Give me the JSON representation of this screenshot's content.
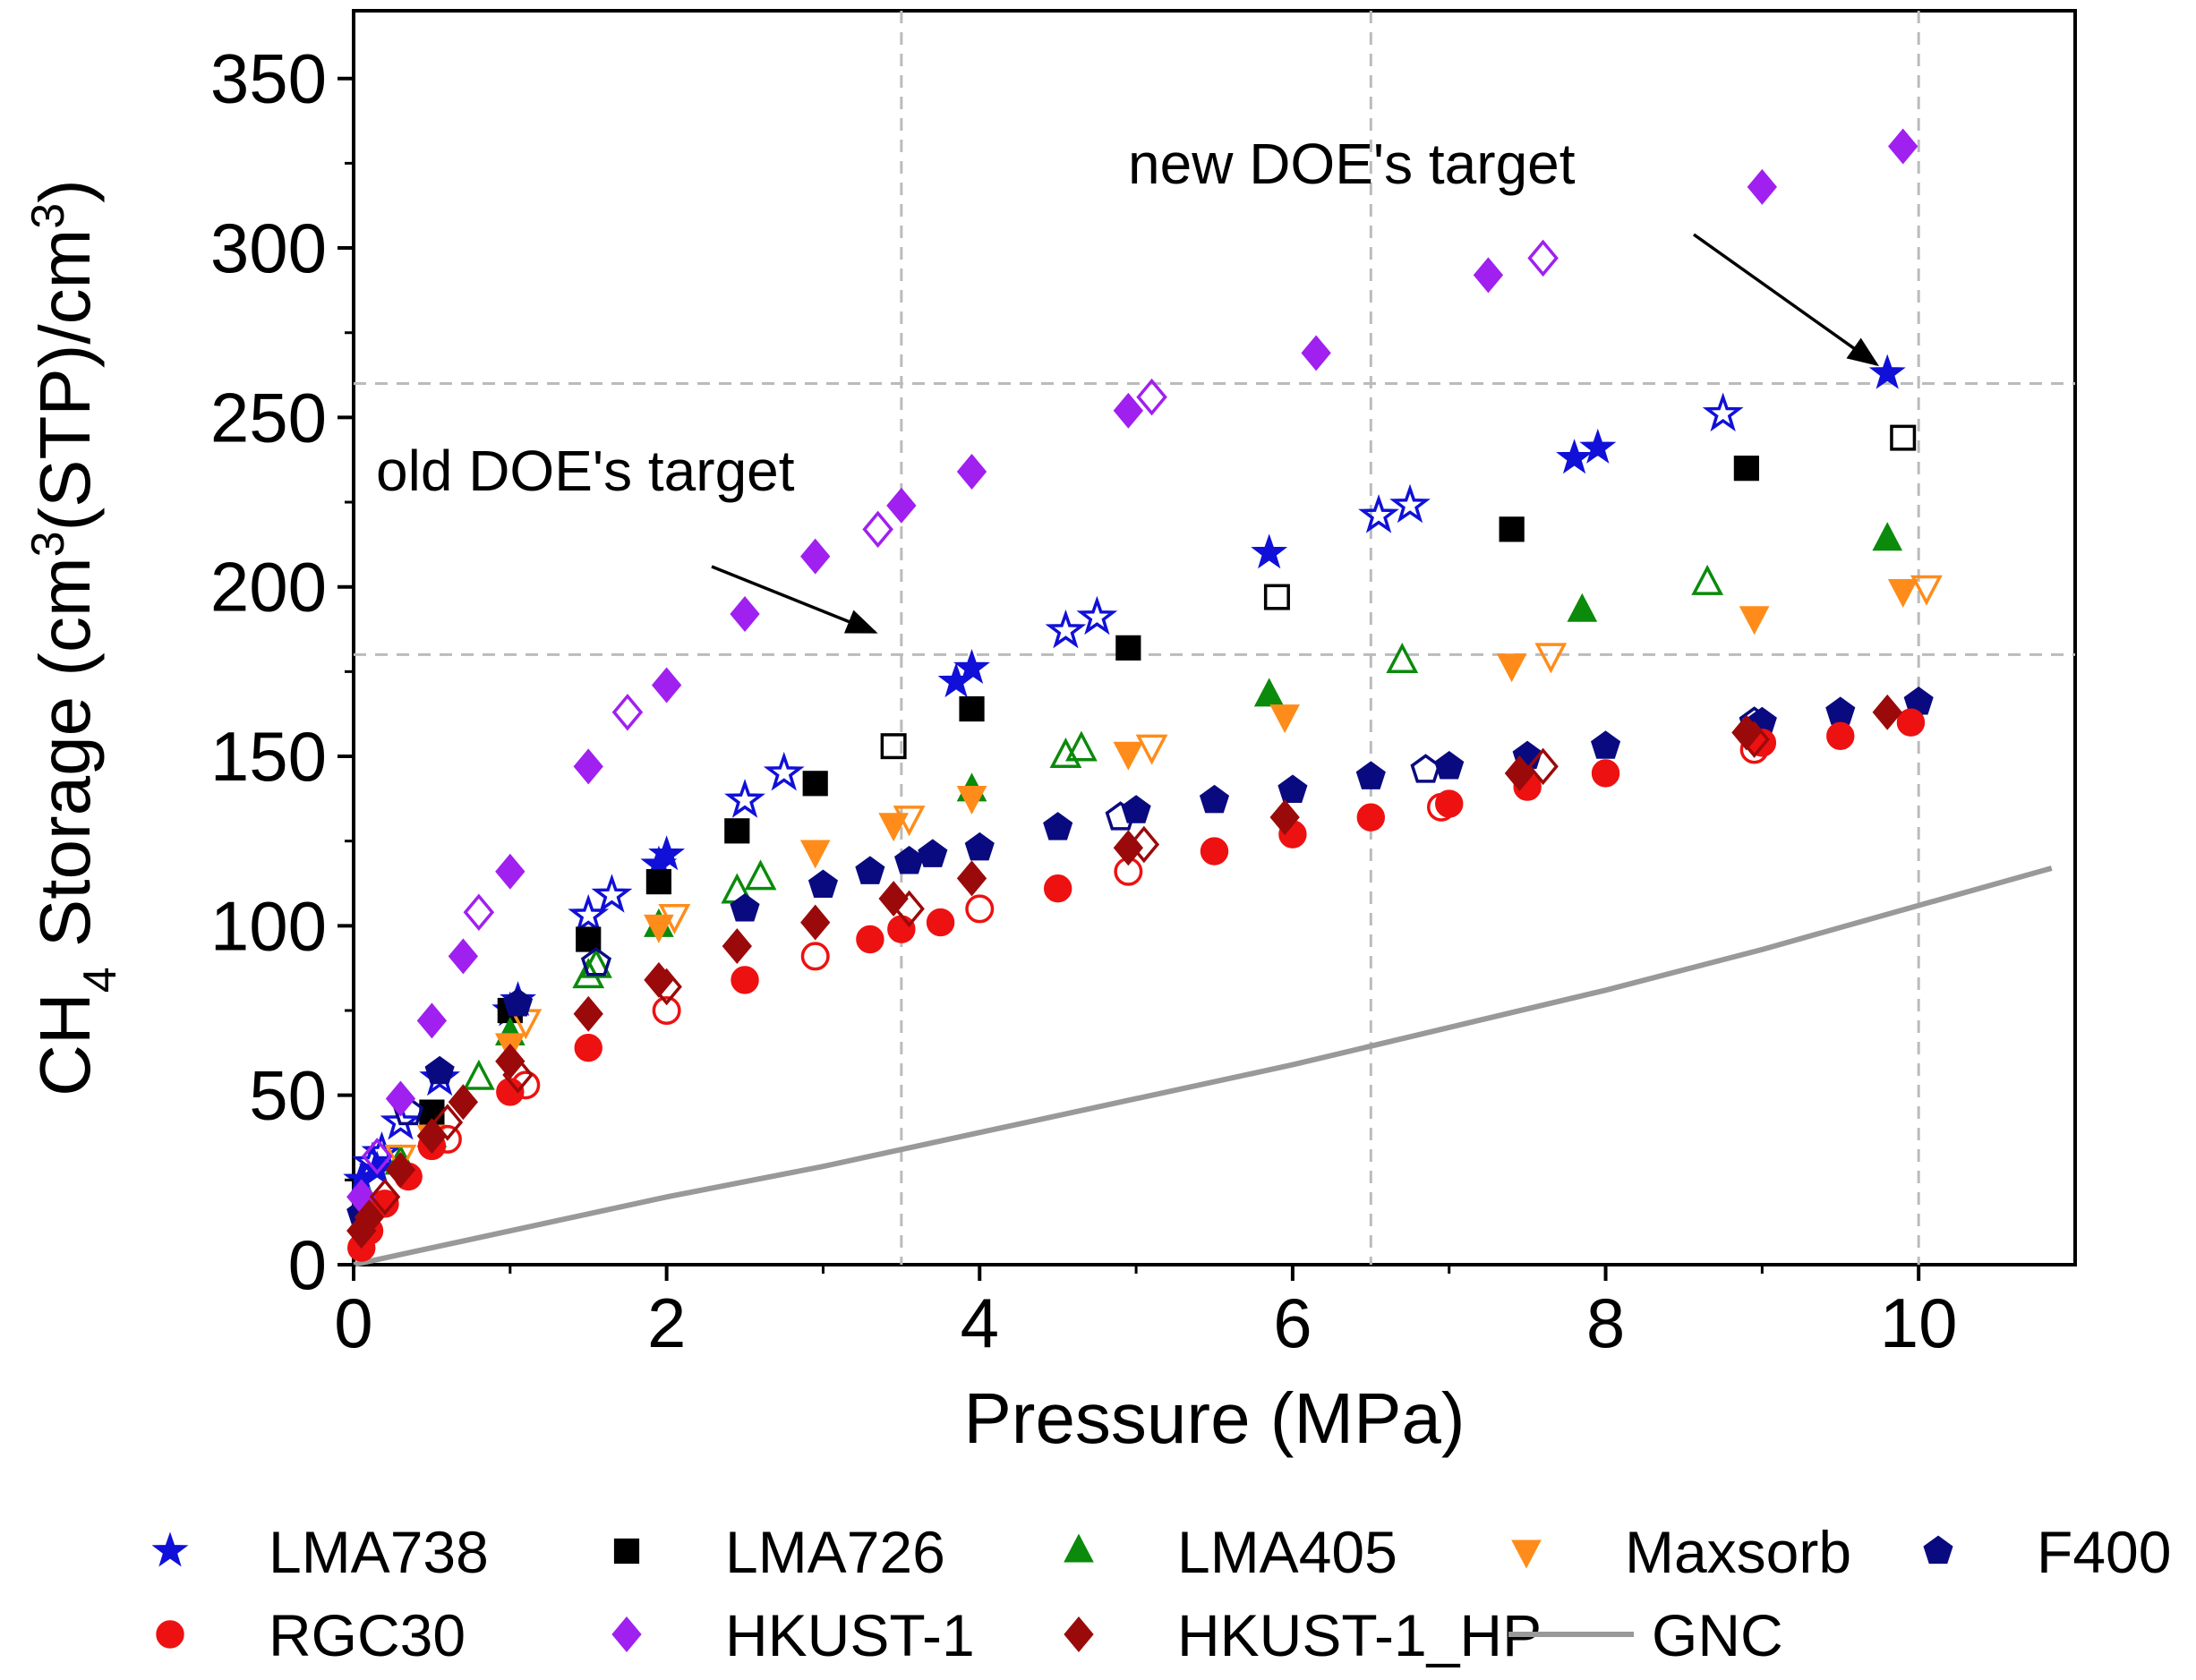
{
  "chart_data": {
    "type": "scatter",
    "title": "",
    "xlabel": "Pressure (MPa)",
    "ylabel": {
      "pre": "CH",
      "sub": "4",
      "mid1": " Storage (cm",
      "sup1": "3",
      "mid2": "(STP)/cm",
      "sup2": "3",
      "post": ")"
    },
    "xlim": [
      0,
      11
    ],
    "ylim": [
      0,
      370
    ],
    "xticks": [
      0,
      2,
      4,
      6,
      8,
      10
    ],
    "yticks": [
      0,
      50,
      100,
      150,
      200,
      250,
      300,
      350
    ],
    "ref_lines": {
      "vertical": [
        3.5,
        6.5,
        10
      ],
      "horizontal": [
        180,
        260
      ]
    },
    "annotations": [
      {
        "text": "old DOE's target",
        "target": [
          3.4,
          184
        ]
      },
      {
        "text": "new DOE's target",
        "target": [
          9.8,
          263
        ]
      }
    ],
    "series": [
      {
        "name": "LMA738",
        "marker": "star",
        "color": "#1010d8",
        "filled": [
          [
            0.05,
            25
          ],
          [
            0.15,
            28
          ],
          [
            1.0,
            75
          ],
          [
            1.05,
            78
          ],
          [
            1.95,
            118
          ],
          [
            2.0,
            121
          ],
          [
            3.85,
            172
          ],
          [
            3.95,
            176
          ],
          [
            5.85,
            210
          ],
          [
            7.8,
            238
          ],
          [
            7.95,
            241
          ],
          [
            9.8,
            263
          ]
        ],
        "open": [
          [
            0.12,
            30
          ],
          [
            0.18,
            33
          ],
          [
            0.3,
            42
          ],
          [
            0.55,
            55
          ],
          [
            1.5,
            103
          ],
          [
            1.65,
            109
          ],
          [
            2.5,
            137
          ],
          [
            2.75,
            145
          ],
          [
            4.55,
            187
          ],
          [
            4.75,
            191
          ],
          [
            6.55,
            221
          ],
          [
            6.75,
            224
          ],
          [
            8.75,
            251
          ]
        ]
      },
      {
        "name": "LMA726",
        "marker": "square",
        "color": "#000000",
        "filled": [
          [
            0.5,
            45
          ],
          [
            1.0,
            75
          ],
          [
            1.5,
            96
          ],
          [
            1.95,
            113
          ],
          [
            2.45,
            128
          ],
          [
            2.95,
            142
          ],
          [
            3.95,
            164
          ],
          [
            4.95,
            182
          ],
          [
            7.4,
            217
          ],
          [
            8.9,
            235
          ]
        ],
        "open": [
          [
            3.45,
            153
          ],
          [
            5.9,
            197
          ],
          [
            9.9,
            244
          ]
        ]
      },
      {
        "name": "LMA405",
        "marker": "triangle-up",
        "color": "#0b8a0b",
        "filled": [
          [
            0.1,
            18
          ],
          [
            0.5,
            38
          ],
          [
            1.0,
            68
          ],
          [
            1.95,
            100
          ],
          [
            3.95,
            140
          ],
          [
            5.85,
            168
          ],
          [
            7.85,
            193
          ],
          [
            9.8,
            214
          ]
        ],
        "open": [
          [
            0.3,
            30
          ],
          [
            0.8,
            55
          ],
          [
            1.5,
            85
          ],
          [
            1.55,
            88
          ],
          [
            2.45,
            110
          ],
          [
            2.6,
            114
          ],
          [
            4.55,
            150
          ],
          [
            4.65,
            152
          ],
          [
            6.7,
            178
          ],
          [
            8.65,
            201
          ]
        ]
      },
      {
        "name": "Maxsorb",
        "marker": "triangle-down",
        "color": "#ff8c1a",
        "filled": [
          [
            0.5,
            38
          ],
          [
            1.0,
            65
          ],
          [
            1.95,
            100
          ],
          [
            2.95,
            122
          ],
          [
            3.45,
            130
          ],
          [
            3.95,
            138
          ],
          [
            4.95,
            151
          ],
          [
            5.95,
            162
          ],
          [
            7.4,
            177
          ],
          [
            8.95,
            191
          ],
          [
            9.9,
            199
          ]
        ],
        "open": [
          [
            0.3,
            32
          ],
          [
            1.1,
            72
          ],
          [
            2.05,
            103
          ],
          [
            3.55,
            132
          ],
          [
            5.1,
            153
          ],
          [
            7.65,
            180
          ],
          [
            10.05,
            200
          ]
        ]
      },
      {
        "name": "F400",
        "marker": "pentagon",
        "color": "#0a0a80",
        "filled": [
          [
            0.05,
            15
          ],
          [
            0.55,
            57
          ],
          [
            1.05,
            77
          ],
          [
            2.5,
            105
          ],
          [
            3.0,
            112
          ],
          [
            3.3,
            116
          ],
          [
            3.55,
            119
          ],
          [
            3.7,
            121
          ],
          [
            4.0,
            123
          ],
          [
            4.5,
            129
          ],
          [
            5.0,
            134
          ],
          [
            5.5,
            137
          ],
          [
            6.0,
            140
          ],
          [
            6.5,
            144
          ],
          [
            7.0,
            147
          ],
          [
            7.5,
            150
          ],
          [
            8.0,
            153
          ],
          [
            9.0,
            160
          ],
          [
            9.5,
            163
          ],
          [
            10.0,
            166
          ]
        ],
        "open": [
          [
            0.35,
            45
          ],
          [
            1.55,
            89
          ],
          [
            4.9,
            132
          ],
          [
            6.85,
            146
          ],
          [
            8.95,
            160
          ]
        ]
      },
      {
        "name": "RGC30",
        "marker": "circle",
        "color": "#ee1111",
        "filled": [
          [
            0.05,
            5
          ],
          [
            0.1,
            10
          ],
          [
            0.2,
            18
          ],
          [
            0.35,
            26
          ],
          [
            0.5,
            35
          ],
          [
            1.0,
            51
          ],
          [
            1.5,
            64
          ],
          [
            2.5,
            84
          ],
          [
            3.3,
            96
          ],
          [
            3.5,
            99
          ],
          [
            3.75,
            101
          ],
          [
            4.5,
            111
          ],
          [
            5.5,
            122
          ],
          [
            6.0,
            127
          ],
          [
            6.5,
            132
          ],
          [
            7.0,
            136
          ],
          [
            7.5,
            141
          ],
          [
            8.0,
            145
          ],
          [
            9.0,
            154
          ],
          [
            9.5,
            156
          ],
          [
            9.95,
            160
          ]
        ],
        "open": [
          [
            0.6,
            37
          ],
          [
            1.1,
            53
          ],
          [
            2.0,
            75
          ],
          [
            2.95,
            91
          ],
          [
            4.0,
            105
          ],
          [
            4.95,
            116
          ],
          [
            6.95,
            135
          ],
          [
            8.95,
            152
          ]
        ]
      },
      {
        "name": "HKUST-1",
        "marker": "diamond",
        "color": "#a020f0",
        "filled": [
          [
            0.05,
            20
          ],
          [
            0.3,
            49
          ],
          [
            0.5,
            72
          ],
          [
            0.7,
            91
          ],
          [
            1.0,
            116
          ],
          [
            1.5,
            147
          ],
          [
            2.0,
            171
          ],
          [
            2.5,
            192
          ],
          [
            2.95,
            209
          ],
          [
            3.5,
            224
          ],
          [
            3.95,
            234
          ],
          [
            4.95,
            252
          ],
          [
            6.15,
            269
          ],
          [
            7.25,
            292
          ],
          [
            9.0,
            318
          ],
          [
            9.9,
            330
          ]
        ],
        "open": [
          [
            0.15,
            32
          ],
          [
            0.8,
            104
          ],
          [
            1.75,
            163
          ],
          [
            3.35,
            217
          ],
          [
            5.1,
            256
          ],
          [
            7.6,
            297
          ]
        ]
      },
      {
        "name": "HKUST-1_HP",
        "marker": "diamond",
        "color": "#9b0a0a",
        "filled": [
          [
            0.05,
            10
          ],
          [
            0.1,
            14
          ],
          [
            0.3,
            28
          ],
          [
            0.5,
            38
          ],
          [
            0.7,
            48
          ],
          [
            1.0,
            60
          ],
          [
            1.5,
            74
          ],
          [
            1.95,
            84
          ],
          [
            2.45,
            94
          ],
          [
            2.95,
            101
          ],
          [
            3.45,
            108
          ],
          [
            3.95,
            114
          ],
          [
            4.95,
            123
          ],
          [
            5.95,
            132
          ],
          [
            7.45,
            145
          ],
          [
            8.9,
            157
          ],
          [
            9.8,
            163
          ]
        ],
        "open": [
          [
            0.2,
            20
          ],
          [
            0.6,
            42
          ],
          [
            1.05,
            56
          ],
          [
            2.0,
            82
          ],
          [
            3.55,
            105
          ],
          [
            5.05,
            124
          ],
          [
            7.6,
            147
          ],
          [
            8.95,
            155
          ]
        ]
      },
      {
        "name": "GNC",
        "marker": "line",
        "color": "#999999",
        "curve": [
          [
            0,
            0
          ],
          [
            1,
            10
          ],
          [
            2,
            20
          ],
          [
            3,
            29
          ],
          [
            4,
            39
          ],
          [
            5,
            49
          ],
          [
            6,
            59
          ],
          [
            7,
            70
          ],
          [
            8,
            81
          ],
          [
            9,
            93
          ],
          [
            10,
            106
          ],
          [
            10.85,
            117
          ]
        ]
      }
    ],
    "legend": {
      "placement": "bottom",
      "rows": [
        [
          "LMA738",
          "LMA726",
          "LMA405",
          "Maxsorb",
          "F400"
        ],
        [
          "RGC30",
          "HKUST-1",
          "HKUST-1_HP",
          "GNC"
        ]
      ]
    }
  }
}
